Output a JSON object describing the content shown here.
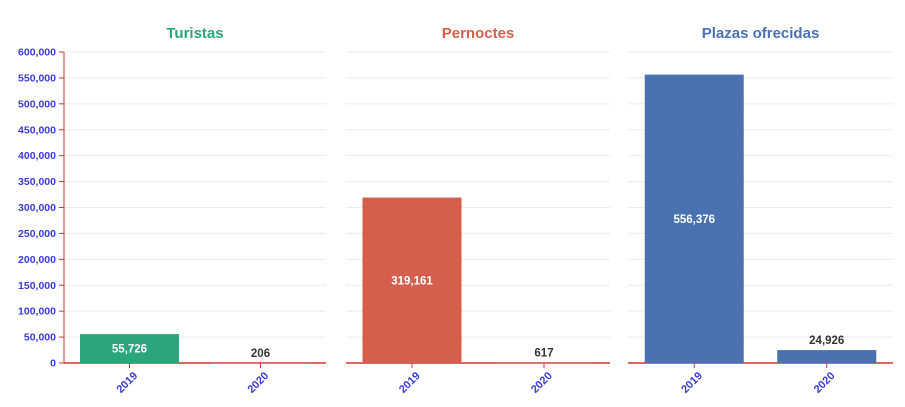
{
  "chart_data": [
    {
      "type": "bar",
      "title": "Turistas",
      "color": "#2aa57d",
      "categories": [
        "2019",
        "2020"
      ],
      "values": [
        55726,
        206
      ],
      "data_labels": [
        "55,726",
        "206"
      ],
      "ylim": [
        0,
        600000
      ],
      "yticks": [
        "0",
        "50,000",
        "100,000",
        "150,000",
        "200,000",
        "250,000",
        "300,000",
        "350,000",
        "400,000",
        "450,000",
        "500,000",
        "550,000",
        "600,000"
      ],
      "grid": true
    },
    {
      "type": "bar",
      "title": "Pernoctes",
      "color": "#d35f4c",
      "categories": [
        "2019",
        "2020"
      ],
      "values": [
        319161,
        617
      ],
      "data_labels": [
        "319,161",
        "617"
      ],
      "ylim": [
        0,
        600000
      ],
      "grid": true
    },
    {
      "type": "bar",
      "title": "Plazas ofrecidas",
      "color": "#4a72b0",
      "categories": [
        "2019",
        "2020"
      ],
      "values": [
        556376,
        24926
      ],
      "data_labels": [
        "556,376",
        "24,926"
      ],
      "ylim": [
        0,
        600000
      ],
      "grid": true
    }
  ],
  "colors": {
    "axis": "#d4342c",
    "tick_text": "#3a3ad6",
    "grid": "#ececec"
  }
}
